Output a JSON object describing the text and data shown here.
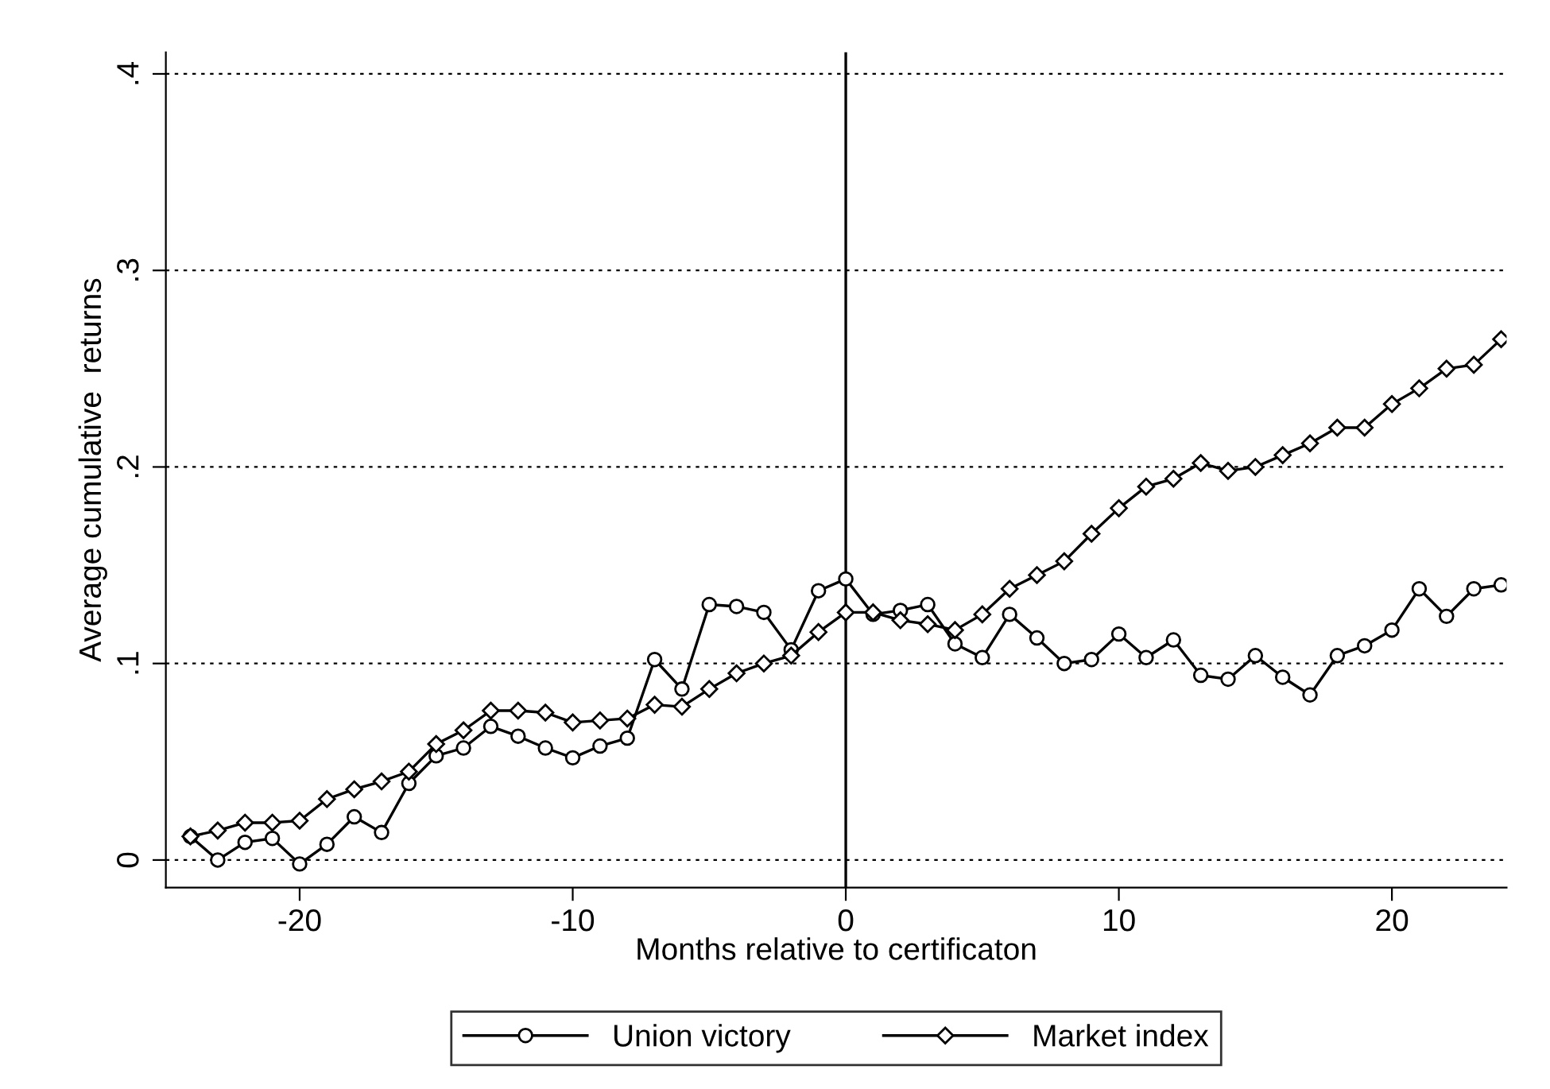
{
  "chart_data": {
    "type": "line",
    "xlabel": "Months relative to certificaton",
    "ylabel": "Average cumulative  returns",
    "x": [
      -24,
      -23,
      -22,
      -21,
      -20,
      -19,
      -18,
      -17,
      -16,
      -15,
      -14,
      -13,
      -12,
      -11,
      -10,
      -9,
      -8,
      -7,
      -6,
      -5,
      -4,
      -3,
      -2,
      -1,
      0,
      1,
      2,
      3,
      4,
      5,
      6,
      7,
      8,
      9,
      10,
      11,
      12,
      13,
      14,
      15,
      16,
      17,
      18,
      19,
      20,
      21,
      22,
      23,
      24
    ],
    "series": [
      {
        "name": "Union victory",
        "color": "#000000",
        "marker": "circle",
        "values": [
          0.012,
          0.0,
          0.009,
          0.011,
          -0.002,
          0.008,
          0.022,
          0.014,
          0.039,
          0.053,
          0.057,
          0.068,
          0.063,
          0.057,
          0.052,
          0.058,
          0.062,
          0.102,
          0.087,
          0.13,
          0.129,
          0.126,
          0.107,
          0.137,
          0.143,
          0.125,
          0.127,
          0.13,
          0.11,
          0.103,
          0.125,
          0.113,
          0.1,
          0.102,
          0.115,
          0.103,
          0.112,
          0.094,
          0.092,
          0.104,
          0.093,
          0.084,
          0.104,
          0.109,
          0.117,
          0.138,
          0.124,
          0.138,
          0.14
        ]
      },
      {
        "name": "Market index",
        "color": "#000000",
        "marker": "diamond",
        "values": [
          0.012,
          0.015,
          0.019,
          0.019,
          0.02,
          0.031,
          0.036,
          0.04,
          0.045,
          0.059,
          0.066,
          0.076,
          0.076,
          0.075,
          0.07,
          0.071,
          0.072,
          0.079,
          0.078,
          0.087,
          0.095,
          0.1,
          0.104,
          0.116,
          0.126,
          0.126,
          0.122,
          0.12,
          0.117,
          0.125,
          0.138,
          0.145,
          0.152,
          0.166,
          0.179,
          0.19,
          0.194,
          0.202,
          0.198,
          0.2,
          0.206,
          0.212,
          0.22,
          0.22,
          0.232,
          0.24,
          0.25,
          0.252,
          0.265
        ]
      }
    ],
    "xlim": [
      -24.9,
      24.2
    ],
    "ylim": [
      -0.014,
      0.411
    ],
    "xticks": [
      -20,
      -10,
      0,
      10,
      20
    ],
    "yticks": [
      {
        "value": 0,
        "label": "0"
      },
      {
        "value": 0.1,
        "label": ".1"
      },
      {
        "value": 0.2,
        "label": ".2"
      },
      {
        "value": 0.3,
        "label": ".3"
      },
      {
        "value": 0.4,
        "label": ".4"
      }
    ],
    "grid": "y",
    "legend": "bottom",
    "line_style": "solid",
    "ref_lines": [
      {
        "axis": "x",
        "value": 0,
        "color": "#000000",
        "line_style": "solid"
      }
    ]
  }
}
